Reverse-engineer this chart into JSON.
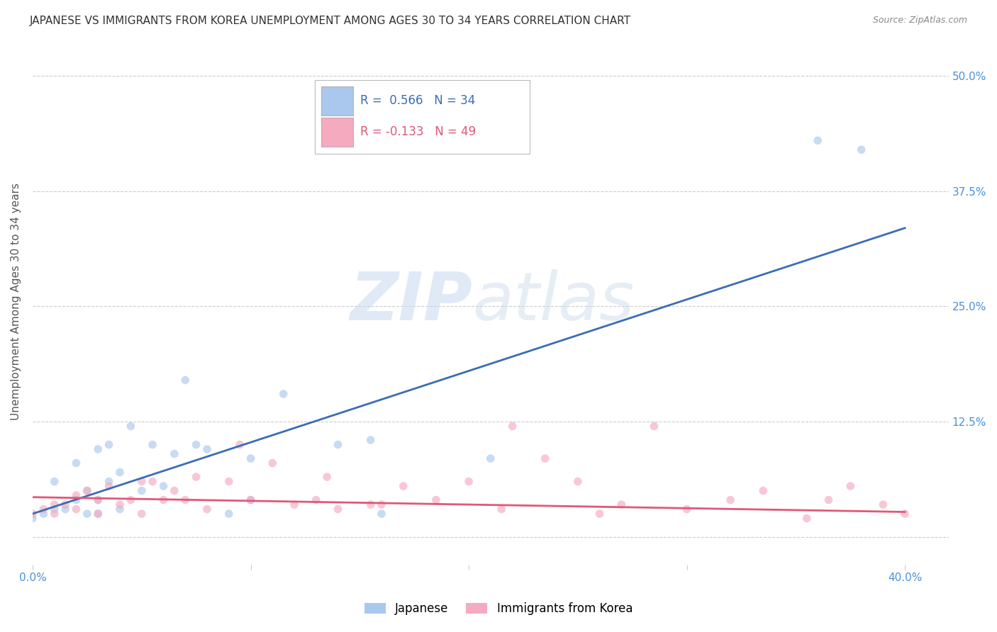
{
  "title": "JAPANESE VS IMMIGRANTS FROM KOREA UNEMPLOYMENT AMONG AGES 30 TO 34 YEARS CORRELATION CHART",
  "source": "Source: ZipAtlas.com",
  "ylabel": "Unemployment Among Ages 30 to 34 years",
  "xlim": [
    0.0,
    0.42
  ],
  "ylim": [
    -0.03,
    0.54
  ],
  "xticks": [
    0.0,
    0.1,
    0.2,
    0.3,
    0.4
  ],
  "xticklabels": [
    "0.0%",
    "",
    "",
    "",
    "40.0%"
  ],
  "ytick_positions": [
    0.0,
    0.125,
    0.25,
    0.375,
    0.5
  ],
  "yticklabels": [
    "",
    "12.5%",
    "25.0%",
    "37.5%",
    "50.0%"
  ],
  "background_color": "#ffffff",
  "watermark_zip": "ZIP",
  "watermark_atlas": "atlas",
  "japanese_color": "#aac8ee",
  "korean_color": "#f5aac0",
  "japanese_line_color": "#3a6db3",
  "korean_line_color": "#e05878",
  "japanese_R": 0.566,
  "japanese_N": 34,
  "korean_R": -0.133,
  "korean_N": 49,
  "japanese_scatter_x": [
    0.0,
    0.005,
    0.01,
    0.01,
    0.015,
    0.02,
    0.02,
    0.025,
    0.025,
    0.03,
    0.03,
    0.03,
    0.035,
    0.035,
    0.04,
    0.04,
    0.045,
    0.05,
    0.055,
    0.06,
    0.065,
    0.07,
    0.075,
    0.08,
    0.09,
    0.1,
    0.1,
    0.115,
    0.14,
    0.155,
    0.16,
    0.21,
    0.36,
    0.38
  ],
  "japanese_scatter_y": [
    0.02,
    0.025,
    0.03,
    0.06,
    0.03,
    0.04,
    0.08,
    0.025,
    0.05,
    0.025,
    0.04,
    0.095,
    0.06,
    0.1,
    0.03,
    0.07,
    0.12,
    0.05,
    0.1,
    0.055,
    0.09,
    0.17,
    0.1,
    0.095,
    0.025,
    0.04,
    0.085,
    0.155,
    0.1,
    0.105,
    0.025,
    0.085,
    0.43,
    0.42
  ],
  "korean_scatter_x": [
    0.0,
    0.005,
    0.01,
    0.01,
    0.015,
    0.02,
    0.02,
    0.025,
    0.03,
    0.03,
    0.035,
    0.04,
    0.045,
    0.05,
    0.05,
    0.055,
    0.06,
    0.065,
    0.07,
    0.075,
    0.08,
    0.09,
    0.095,
    0.1,
    0.11,
    0.12,
    0.13,
    0.135,
    0.14,
    0.155,
    0.16,
    0.17,
    0.185,
    0.2,
    0.215,
    0.22,
    0.235,
    0.25,
    0.26,
    0.27,
    0.285,
    0.3,
    0.32,
    0.335,
    0.355,
    0.365,
    0.375,
    0.39,
    0.4
  ],
  "korean_scatter_y": [
    0.025,
    0.03,
    0.025,
    0.035,
    0.035,
    0.03,
    0.045,
    0.05,
    0.025,
    0.04,
    0.055,
    0.035,
    0.04,
    0.025,
    0.06,
    0.06,
    0.04,
    0.05,
    0.04,
    0.065,
    0.03,
    0.06,
    0.1,
    0.04,
    0.08,
    0.035,
    0.04,
    0.065,
    0.03,
    0.035,
    0.035,
    0.055,
    0.04,
    0.06,
    0.03,
    0.12,
    0.085,
    0.06,
    0.025,
    0.035,
    0.12,
    0.03,
    0.04,
    0.05,
    0.02,
    0.04,
    0.055,
    0.035,
    0.025
  ],
  "japanese_line_x": [
    0.0,
    0.4
  ],
  "japanese_line_y": [
    0.025,
    0.335
  ],
  "korean_line_x": [
    0.0,
    0.4
  ],
  "korean_line_y": [
    0.043,
    0.027
  ],
  "legend_label_japanese": "Japanese",
  "legend_label_korean": "Immigrants from Korea",
  "grid_color": "#cccccc",
  "grid_style": "--",
  "title_fontsize": 11,
  "axis_label_fontsize": 11,
  "tick_fontsize": 11,
  "legend_fontsize": 12,
  "scatter_size": 70,
  "scatter_alpha": 0.65,
  "scatter_edgewidth": 0.0,
  "scatter_edgecolor": "none"
}
